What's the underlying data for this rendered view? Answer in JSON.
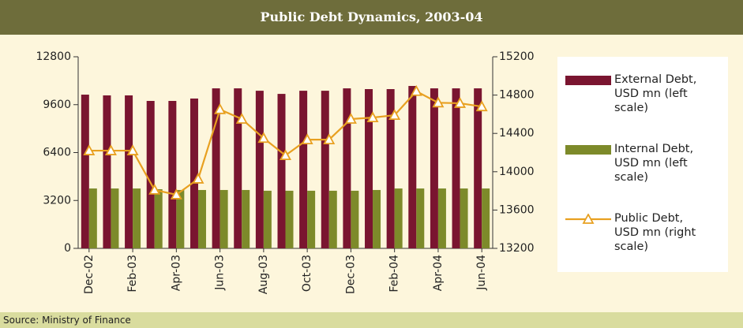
{
  "chart_data": {
    "type": "bar-line",
    "title": "Public Debt Dynamics, 2003-04",
    "source": "Source: Ministry of Finance",
    "categories": [
      "Dec-02",
      null,
      "Feb-03",
      null,
      "Apr-03",
      null,
      "Jun-03",
      null,
      "Aug-03",
      null,
      "Oct-03",
      null,
      "Dec-03",
      null,
      "Feb-04",
      null,
      "Apr-04",
      null,
      "Jun-04"
    ],
    "series": [
      {
        "name": "External Debt, USD mn (left scale)",
        "color": "#7a1530",
        "kind": "bar",
        "values": [
          10270,
          10220,
          10220,
          9850,
          9850,
          10010,
          10690,
          10690,
          10530,
          10320,
          10530,
          10530,
          10690,
          10640,
          10640,
          10850,
          10690,
          10690,
          10690
        ]
      },
      {
        "name": "Internal Debt, USD mn (left scale)",
        "color": "#7d8a2a",
        "kind": "bar",
        "values": [
          4000,
          4000,
          4000,
          3950,
          3900,
          3900,
          3900,
          3900,
          3850,
          3850,
          3850,
          3850,
          3850,
          3900,
          4000,
          4000,
          4000,
          4000,
          4000
        ]
      },
      {
        "name": "Public Debt, USD mn (right scale)",
        "color": "#e8a020",
        "kind": "line",
        "axis": "y2",
        "values": [
          14220,
          14220,
          14220,
          13810,
          13760,
          13925,
          14650,
          14550,
          14350,
          14170,
          14335,
          14335,
          14550,
          14565,
          14590,
          14840,
          14720,
          14715,
          14680
        ]
      }
    ],
    "ylim": [
      0,
      12800
    ],
    "yticks": [
      0,
      3200,
      6400,
      9600,
      12800
    ],
    "y2lim": [
      13200,
      15200
    ],
    "y2ticks": [
      13200,
      13600,
      14000,
      14400,
      14800,
      15200
    ]
  }
}
